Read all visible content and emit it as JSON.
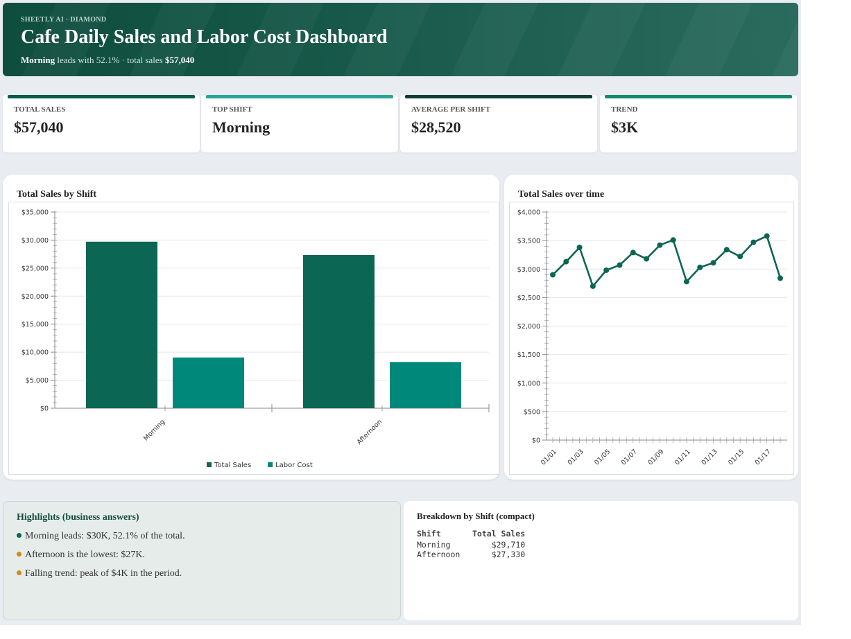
{
  "header": {
    "brand": "SHEETLY AI · DIAMOND",
    "title": "Cafe Daily Sales and Labor Cost Dashboard",
    "subtitle_bold1": "Morning",
    "subtitle_mid": " leads with 52.1% · total sales ",
    "subtitle_bold2": "$57,040"
  },
  "kpis": [
    {
      "label": "TOTAL SALES",
      "value": "$57,040",
      "color": "#0b5a4a"
    },
    {
      "label": "TOP SHIFT",
      "value": "Morning",
      "color": "#2aa693"
    },
    {
      "label": "AVERAGE PER SHIFT",
      "value": "$28,520",
      "color": "#0d3f34"
    },
    {
      "label": "TREND",
      "value": "$3K",
      "color": "#14896f"
    }
  ],
  "bar_chart_title": "Total Sales by Shift",
  "line_chart_title": "Total Sales over time",
  "chart_data": [
    {
      "type": "bar",
      "title": "Total Sales by Shift",
      "categories": [
        "Morning",
        "Afternoon"
      ],
      "series": [
        {
          "name": "Total Sales",
          "values": [
            29710,
            27330
          ],
          "color": "#0b6654"
        },
        {
          "name": "Labor Cost",
          "values": [
            9050,
            8250
          ],
          "color": "#00897b"
        }
      ],
      "ylim": [
        0,
        35000
      ],
      "yticks": [
        "$0",
        "$5,000",
        "$10,000",
        "$15,000",
        "$20,000",
        "$25,000",
        "$30,000",
        "$35,000"
      ],
      "grid": true,
      "legend": "bottom"
    },
    {
      "type": "line",
      "title": "Total Sales over time",
      "x": [
        "01/01",
        "01/02",
        "01/03",
        "01/04",
        "01/05",
        "01/06",
        "01/07",
        "01/08",
        "01/09",
        "01/10",
        "01/11",
        "01/12",
        "01/13",
        "01/14",
        "01/15",
        "01/16",
        "01/17",
        "01/18"
      ],
      "xticklabels": [
        "01/01",
        "01/03",
        "01/05",
        "01/07",
        "01/09",
        "01/11",
        "01/13",
        "01/15",
        "01/17"
      ],
      "series": [
        {
          "name": "Total Sales",
          "values": [
            2900,
            3130,
            3380,
            2700,
            2980,
            3070,
            3290,
            3180,
            3420,
            3510,
            2780,
            3030,
            3110,
            3340,
            3220,
            3470,
            3580,
            2840
          ],
          "color": "#0b6654"
        }
      ],
      "ylim": [
        0,
        4000
      ],
      "yticks": [
        "$0",
        "$500",
        "$1,000",
        "$1,500",
        "$2,000",
        "$2,500",
        "$3,000",
        "$3,500",
        "$4,000"
      ],
      "grid": true
    }
  ],
  "highlights": {
    "title": "Highlights (business answers)",
    "items": [
      {
        "text": "Morning leads: $30K, 52.1% of the total.",
        "color": "#0b6654"
      },
      {
        "text": "Afternoon is the lowest: $27K.",
        "color": "#d4891a"
      },
      {
        "text": "Falling trend: peak of $4K in the period.",
        "color": "#d4891a"
      }
    ]
  },
  "breakdown": {
    "title": "Breakdown by Shift (compact)",
    "col_shift": "Shift",
    "col_sales": "Total Sales",
    "rows": [
      {
        "shift": "Morning",
        "sales": "$29,710"
      },
      {
        "shift": "Afternoon",
        "sales": "$27,330"
      }
    ]
  }
}
